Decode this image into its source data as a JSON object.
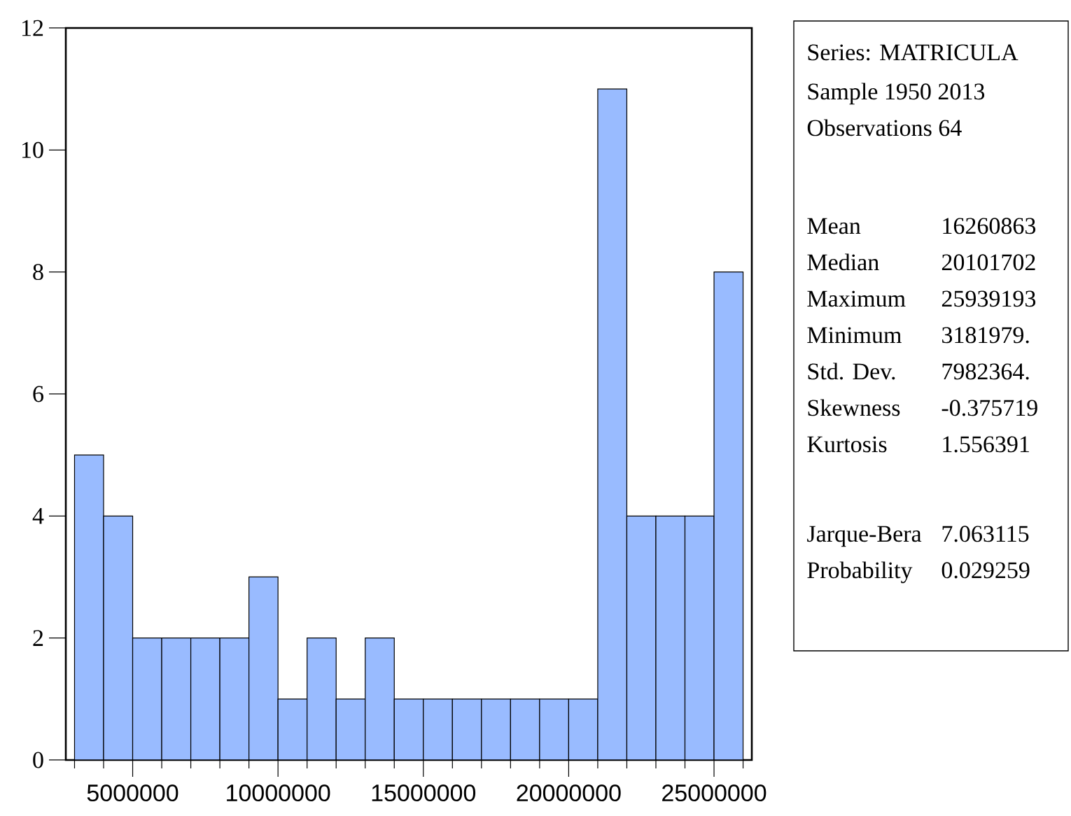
{
  "chart_data": {
    "type": "histogram",
    "color": "#99bbff",
    "bins": [
      3000000,
      4000000,
      5000000,
      6000000,
      7000000,
      8000000,
      9000000,
      10000000,
      11000000,
      12000000,
      13000000,
      14000000,
      15000000,
      16000000,
      17000000,
      18000000,
      19000000,
      20000000,
      21000000,
      22000000,
      23000000,
      24000000,
      25000000,
      26000000
    ],
    "values": [
      5,
      4,
      2,
      2,
      2,
      2,
      3,
      1,
      2,
      1,
      2,
      1,
      1,
      1,
      1,
      1,
      1,
      1,
      11,
      4,
      4,
      4,
      8
    ],
    "xlim": [
      2700000,
      26300000
    ],
    "xticks": [
      {
        "value": 3000000,
        "label": null
      },
      {
        "value": 4000000,
        "label": null
      },
      5000000,
      {
        "value": 6000000,
        "label": null
      },
      {
        "value": 7000000,
        "label": null
      },
      {
        "value": 8000000,
        "label": null
      },
      {
        "value": 9000000,
        "label": null
      },
      10000000,
      {
        "value": 11000000,
        "label": null
      },
      {
        "value": 12000000,
        "label": null
      },
      {
        "value": 13000000,
        "label": null
      },
      {
        "value": 14000000,
        "label": null
      },
      15000000,
      {
        "value": 16000000,
        "label": null
      },
      {
        "value": 17000000,
        "label": null
      },
      {
        "value": 18000000,
        "label": null
      },
      {
        "value": 19000000,
        "label": null
      },
      20000000,
      {
        "value": 21000000,
        "label": null
      },
      {
        "value": 22000000,
        "label": null
      },
      {
        "value": 23000000,
        "label": null
      },
      {
        "value": 24000000,
        "label": null
      },
      25000000,
      {
        "value": 26000000,
        "label": null
      }
    ],
    "ylim": [
      0,
      12
    ],
    "yticks": [
      0,
      2,
      4,
      6,
      8,
      10,
      12
    ],
    "grid": false,
    "annotations": [
      "Series: MATRICULA",
      "Sample 1950 2013",
      "Observations 64",
      "Mean",
      "16260863",
      "Median",
      "20101702",
      "Maximum",
      "25939193",
      "Minimum",
      "3181979.",
      "Std. Dev.",
      "7982364.",
      "Skewness",
      "-0.375719",
      "Kurtosis",
      "1.556391",
      "Jarque-Bera",
      "7.063115",
      "Probability",
      "0.029259"
    ]
  }
}
